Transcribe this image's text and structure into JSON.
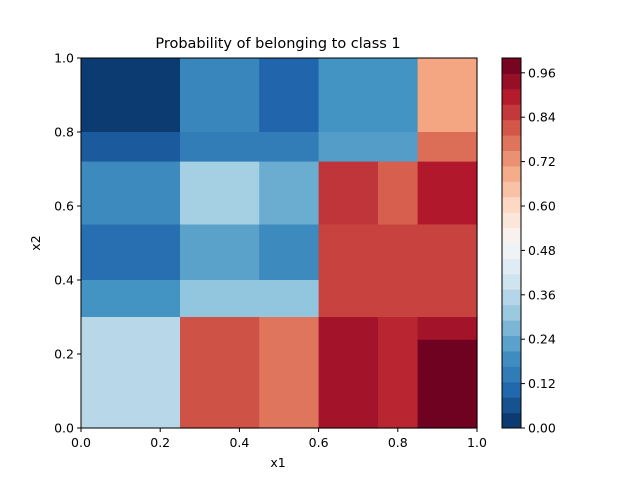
{
  "chart_data": {
    "type": "heatmap",
    "title": "Probability of belonging to class 1",
    "xlabel": "x1",
    "ylabel": "x2",
    "xlim": [
      0,
      1
    ],
    "ylim": [
      0,
      1
    ],
    "x_ticks": [
      "0.0",
      "0.2",
      "0.4",
      "0.6",
      "0.8",
      "1.0"
    ],
    "y_ticks": [
      "0.0",
      "0.2",
      "0.4",
      "0.6",
      "0.8",
      "1.0"
    ],
    "colormap": "RdBu_r",
    "colorbar": {
      "range": [
        0,
        1
      ],
      "ticks": [
        "0.00",
        "0.12",
        "0.24",
        "0.36",
        "0.48",
        "0.60",
        "0.72",
        "0.84",
        "0.96"
      ]
    },
    "regions": [
      {
        "x": [
          0.0,
          0.25
        ],
        "y": [
          0.8,
          1.0
        ],
        "value": 0.02
      },
      {
        "x": [
          0.25,
          0.45
        ],
        "y": [
          0.8,
          1.0
        ],
        "value": 0.17
      },
      {
        "x": [
          0.45,
          0.6
        ],
        "y": [
          0.8,
          1.0
        ],
        "value": 0.1
      },
      {
        "x": [
          0.6,
          0.85
        ],
        "y": [
          0.8,
          1.0
        ],
        "value": 0.2
      },
      {
        "x": [
          0.85,
          1.0
        ],
        "y": [
          0.8,
          1.0
        ],
        "value": 0.7
      },
      {
        "x": [
          0.0,
          0.25
        ],
        "y": [
          0.72,
          0.8
        ],
        "value": 0.08
      },
      {
        "x": [
          0.25,
          0.6
        ],
        "y": [
          0.72,
          0.8
        ],
        "value": 0.15
      },
      {
        "x": [
          0.6,
          0.85
        ],
        "y": [
          0.72,
          0.8
        ],
        "value": 0.22
      },
      {
        "x": [
          0.85,
          1.0
        ],
        "y": [
          0.72,
          0.8
        ],
        "value": 0.78
      },
      {
        "x": [
          0.0,
          0.25
        ],
        "y": [
          0.55,
          0.72
        ],
        "value": 0.18
      },
      {
        "x": [
          0.25,
          0.45
        ],
        "y": [
          0.55,
          0.72
        ],
        "value": 0.33
      },
      {
        "x": [
          0.45,
          0.6
        ],
        "y": [
          0.55,
          0.72
        ],
        "value": 0.25
      },
      {
        "x": [
          0.6,
          0.75
        ],
        "y": [
          0.55,
          0.72
        ],
        "value": 0.86
      },
      {
        "x": [
          0.75,
          0.85
        ],
        "y": [
          0.55,
          0.72
        ],
        "value": 0.8
      },
      {
        "x": [
          0.85,
          1.0
        ],
        "y": [
          0.55,
          0.72
        ],
        "value": 0.9
      },
      {
        "x": [
          0.0,
          0.25
        ],
        "y": [
          0.4,
          0.55
        ],
        "value": 0.12
      },
      {
        "x": [
          0.25,
          0.45
        ],
        "y": [
          0.4,
          0.55
        ],
        "value": 0.23
      },
      {
        "x": [
          0.45,
          0.6
        ],
        "y": [
          0.4,
          0.55
        ],
        "value": 0.18
      },
      {
        "x": [
          0.6,
          1.0
        ],
        "y": [
          0.4,
          0.55
        ],
        "value": 0.84
      },
      {
        "x": [
          0.0,
          0.25
        ],
        "y": [
          0.3,
          0.4
        ],
        "value": 0.2
      },
      {
        "x": [
          0.25,
          0.6
        ],
        "y": [
          0.3,
          0.4
        ],
        "value": 0.3
      },
      {
        "x": [
          0.6,
          1.0
        ],
        "y": [
          0.3,
          0.4
        ],
        "value": 0.84
      },
      {
        "x": [
          0.0,
          0.25
        ],
        "y": [
          0.0,
          0.3
        ],
        "value": 0.36
      },
      {
        "x": [
          0.25,
          0.45
        ],
        "y": [
          0.0,
          0.3
        ],
        "value": 0.82
      },
      {
        "x": [
          0.45,
          0.6
        ],
        "y": [
          0.0,
          0.3
        ],
        "value": 0.77
      },
      {
        "x": [
          0.6,
          0.75
        ],
        "y": [
          0.0,
          0.3
        ],
        "value": 0.92
      },
      {
        "x": [
          0.75,
          0.85
        ],
        "y": [
          0.0,
          0.3
        ],
        "value": 0.88
      },
      {
        "x": [
          0.85,
          1.0
        ],
        "y": [
          0.0,
          0.24
        ],
        "value": 0.99
      },
      {
        "x": [
          0.85,
          1.0
        ],
        "y": [
          0.24,
          0.3
        ],
        "value": 0.92
      }
    ]
  }
}
